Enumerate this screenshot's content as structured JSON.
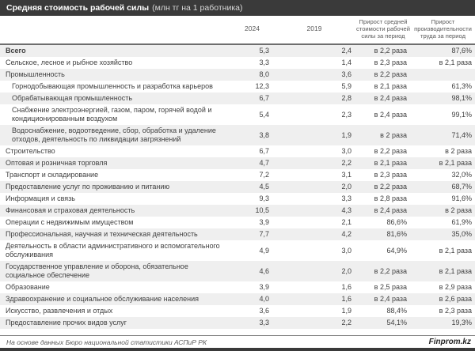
{
  "title": {
    "main": "Средняя стоимость рабочей силы",
    "unit": "(млн тг на 1 работника)"
  },
  "columns": {
    "y2024": "2024",
    "y2019": "2019",
    "cost_growth": "Прирост средней стоимости рабочей силы за период",
    "prod_growth": "Прирост производительности труда за период"
  },
  "footer": {
    "source": "На основе данных Бюро национальной статистики АСПиР РК",
    "brand": "Finprom.kz"
  },
  "colors": {
    "titlebar_bg": "#3a3a3a",
    "stripe_row": "#efefef",
    "header_text": "#595959",
    "body_text": "#404040"
  },
  "chart_data": {
    "type": "table",
    "title": "Средняя стоимость рабочей силы (млн тг на 1 работника)",
    "columns": [
      "",
      "2024",
      "2019",
      "Прирост средней стоимости рабочей силы за период",
      "Прирост производительности труда за период"
    ],
    "rows": [
      {
        "label": "Всего",
        "bold": true,
        "indent": false,
        "y2024": "5,3",
        "y2019": "2,4",
        "cost": "в 2,2 раза",
        "prod": "87,6%"
      },
      {
        "label": "Сельское, лесное и рыбное хозяйство",
        "bold": false,
        "indent": false,
        "y2024": "3,3",
        "y2019": "1,4",
        "cost": "в 2,3 раза",
        "prod": "в 2,1 раза"
      },
      {
        "label": "Промышленность",
        "bold": false,
        "indent": false,
        "y2024": "8,0",
        "y2019": "3,6",
        "cost": "в 2,2 раза",
        "prod": ""
      },
      {
        "label": "Горнодобывающая промышленность и разработка карьеров",
        "bold": false,
        "indent": true,
        "y2024": "12,3",
        "y2019": "5,9",
        "cost": "в 2,1 раза",
        "prod": "61,3%"
      },
      {
        "label": "Обрабатывающая промышленность",
        "bold": false,
        "indent": true,
        "y2024": "6,7",
        "y2019": "2,8",
        "cost": "в 2,4 раза",
        "prod": "98,1%"
      },
      {
        "label": "Снабжение электроэнергией, газом, паром, горячей водой и кондиционированным воздухом",
        "bold": false,
        "indent": true,
        "y2024": "5,4",
        "y2019": "2,3",
        "cost": "в 2,4 раза",
        "prod": "99,1%"
      },
      {
        "label": "Водоснабжение, водоотведение, сбор, обработка и удаление отходов, деятельность по ликвидации загрязнений",
        "bold": false,
        "indent": true,
        "y2024": "3,8",
        "y2019": "1,9",
        "cost": "в 2 раза",
        "prod": "71,4%"
      },
      {
        "label": "Строительство",
        "bold": false,
        "indent": false,
        "y2024": "6,7",
        "y2019": "3,0",
        "cost": "в 2,2 раза",
        "prod": "в 2 раза"
      },
      {
        "label": "Оптовая и розничная торговля",
        "bold": false,
        "indent": false,
        "y2024": "4,7",
        "y2019": "2,2",
        "cost": "в 2,1 раза",
        "prod": "в 2,1 раза"
      },
      {
        "label": "Транспорт и складирование",
        "bold": false,
        "indent": false,
        "y2024": "7,2",
        "y2019": "3,1",
        "cost": "в 2,3 раза",
        "prod": "32,0%"
      },
      {
        "label": "Предоставление услуг по проживанию и питанию",
        "bold": false,
        "indent": false,
        "y2024": "4,5",
        "y2019": "2,0",
        "cost": "в 2,2 раза",
        "prod": "68,7%"
      },
      {
        "label": "Информация и связь",
        "bold": false,
        "indent": false,
        "y2024": "9,3",
        "y2019": "3,3",
        "cost": "в 2,8 раза",
        "prod": "91,6%"
      },
      {
        "label": "Финансовая и страховая деятельность",
        "bold": false,
        "indent": false,
        "y2024": "10,5",
        "y2019": "4,3",
        "cost": "в 2,4 раза",
        "prod": "в 2 раза"
      },
      {
        "label": "Операции с недвижимым имуществом",
        "bold": false,
        "indent": false,
        "y2024": "3,9",
        "y2019": "2,1",
        "cost": "86,6%",
        "prod": "61,9%"
      },
      {
        "label": "Профессиональная, научная и техническая деятельность",
        "bold": false,
        "indent": false,
        "y2024": "7,7",
        "y2019": "4,2",
        "cost": "81,6%",
        "prod": "35,0%"
      },
      {
        "label": "Деятельность в области административного и вспомогательного обслуживания",
        "bold": false,
        "indent": false,
        "y2024": "4,9",
        "y2019": "3,0",
        "cost": "64,9%",
        "prod": "в 2,1 раза"
      },
      {
        "label": "Государственное управление и оборона, обязательное социальное обеспечение",
        "bold": false,
        "indent": false,
        "y2024": "4,6",
        "y2019": "2,0",
        "cost": "в 2,2 раза",
        "prod": "в 2,1 раза"
      },
      {
        "label": "Образование",
        "bold": false,
        "indent": false,
        "y2024": "3,9",
        "y2019": "1,6",
        "cost": "в 2,5 раза",
        "prod": "в 2,9 раза"
      },
      {
        "label": "Здравоохранение и социальное обслуживание населения",
        "bold": false,
        "indent": false,
        "y2024": "4,0",
        "y2019": "1,6",
        "cost": "в 2,4 раза",
        "prod": "в 2,6 раза"
      },
      {
        "label": "Искусство, развлечения и отдых",
        "bold": false,
        "indent": false,
        "y2024": "3,6",
        "y2019": "1,9",
        "cost": "88,4%",
        "prod": "в 2,3 раза"
      },
      {
        "label": "Предоставление прочих видов услуг",
        "bold": false,
        "indent": false,
        "y2024": "3,3",
        "y2019": "2,2",
        "cost": "54,1%",
        "prod": "19,3%"
      }
    ]
  }
}
